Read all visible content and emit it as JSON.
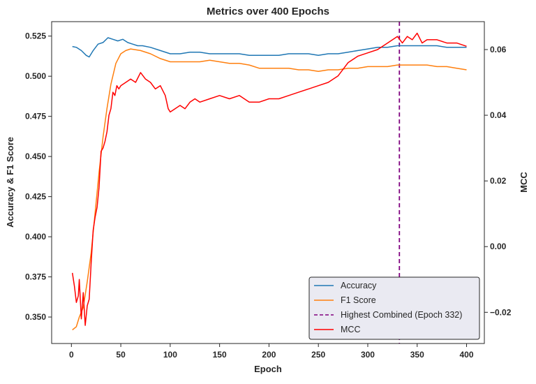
{
  "chart_data": {
    "type": "line",
    "title": "Metrics over 400 Epochs",
    "xlabel": "Epoch",
    "ylabel_left": "Accuracy & F1 Score",
    "ylabel_right": "MCC",
    "xlim": [
      -20,
      418
    ],
    "ylim_left": [
      0.3335,
      0.534
    ],
    "ylim_right": [
      -0.0295,
      0.0685
    ],
    "x_ticks": [
      0,
      50,
      100,
      150,
      200,
      250,
      300,
      350,
      400
    ],
    "y_left_ticks": [
      0.35,
      0.375,
      0.4,
      0.425,
      0.45,
      0.475,
      0.5,
      0.525
    ],
    "y_left_tick_labels": [
      "0.350",
      "0.375",
      "0.400",
      "0.425",
      "0.450",
      "0.475",
      "0.500",
      "0.525"
    ],
    "y_right_ticks": [
      -0.02,
      0.0,
      0.02,
      0.04,
      0.06
    ],
    "y_right_tick_labels": [
      "−0.02",
      "0.00",
      "0.02",
      "0.04",
      "0.06"
    ],
    "grid": false,
    "legend_placement": "lower-right",
    "vline": {
      "x": 332,
      "label": "Highest Combined (Epoch 332)",
      "color": "#800080"
    },
    "series": [
      {
        "name": "Accuracy",
        "axis": "left",
        "color": "#1f77b4",
        "x": [
          1,
          5,
          10,
          15,
          18,
          22,
          27,
          32,
          37,
          42,
          47,
          52,
          57,
          62,
          67,
          72,
          80,
          90,
          100,
          110,
          120,
          130,
          140,
          150,
          160,
          170,
          180,
          190,
          200,
          210,
          220,
          230,
          240,
          250,
          260,
          270,
          280,
          290,
          300,
          310,
          320,
          330,
          340,
          350,
          360,
          370,
          380,
          390,
          400
        ],
        "y": [
          0.5185,
          0.518,
          0.516,
          0.513,
          0.512,
          0.516,
          0.52,
          0.521,
          0.524,
          0.523,
          0.522,
          0.523,
          0.521,
          0.52,
          0.519,
          0.519,
          0.518,
          0.516,
          0.514,
          0.514,
          0.515,
          0.515,
          0.514,
          0.514,
          0.514,
          0.514,
          0.513,
          0.513,
          0.513,
          0.513,
          0.514,
          0.514,
          0.514,
          0.513,
          0.514,
          0.514,
          0.515,
          0.516,
          0.517,
          0.518,
          0.518,
          0.519,
          0.519,
          0.519,
          0.519,
          0.519,
          0.518,
          0.518,
          0.518
        ]
      },
      {
        "name": "F1 Score",
        "axis": "left",
        "color": "#ff7f0e",
        "x": [
          1,
          5,
          8,
          12,
          16,
          20,
          24,
          28,
          32,
          36,
          40,
          45,
          50,
          55,
          60,
          70,
          80,
          90,
          100,
          110,
          120,
          130,
          140,
          150,
          160,
          170,
          180,
          190,
          200,
          210,
          220,
          230,
          240,
          250,
          260,
          270,
          280,
          290,
          300,
          310,
          320,
          330,
          340,
          350,
          360,
          370,
          380,
          390,
          400
        ],
        "y": [
          0.342,
          0.344,
          0.35,
          0.356,
          0.372,
          0.39,
          0.415,
          0.44,
          0.462,
          0.48,
          0.495,
          0.508,
          0.514,
          0.516,
          0.517,
          0.516,
          0.514,
          0.511,
          0.509,
          0.509,
          0.509,
          0.509,
          0.51,
          0.509,
          0.508,
          0.508,
          0.507,
          0.505,
          0.505,
          0.505,
          0.505,
          0.504,
          0.504,
          0.503,
          0.504,
          0.504,
          0.505,
          0.505,
          0.506,
          0.506,
          0.506,
          0.507,
          0.507,
          0.507,
          0.507,
          0.506,
          0.506,
          0.505,
          0.504
        ]
      },
      {
        "name": "MCC",
        "axis": "right",
        "color": "#ff0000",
        "x": [
          1,
          3,
          5,
          7,
          8,
          10,
          12,
          14,
          16,
          18,
          20,
          22,
          24,
          26,
          28,
          30,
          32,
          34,
          36,
          38,
          40,
          42,
          44,
          46,
          48,
          50,
          55,
          60,
          65,
          70,
          75,
          80,
          85,
          90,
          95,
          98,
          100,
          105,
          110,
          115,
          120,
          125,
          130,
          140,
          150,
          160,
          170,
          180,
          190,
          200,
          210,
          220,
          230,
          240,
          250,
          260,
          270,
          280,
          290,
          300,
          310,
          320,
          330,
          335,
          340,
          345,
          350,
          355,
          360,
          370,
          380,
          390,
          400
        ],
        "y": [
          -0.008,
          -0.012,
          -0.017,
          -0.015,
          -0.01,
          -0.022,
          -0.014,
          -0.024,
          -0.018,
          -0.016,
          -0.005,
          0.005,
          0.009,
          0.012,
          0.018,
          0.029,
          0.03,
          0.032,
          0.035,
          0.04,
          0.042,
          0.047,
          0.046,
          0.049,
          0.048,
          0.049,
          0.05,
          0.051,
          0.05,
          0.053,
          0.051,
          0.05,
          0.048,
          0.049,
          0.046,
          0.042,
          0.041,
          0.042,
          0.043,
          0.042,
          0.044,
          0.045,
          0.044,
          0.045,
          0.046,
          0.045,
          0.046,
          0.044,
          0.044,
          0.045,
          0.045,
          0.046,
          0.047,
          0.048,
          0.049,
          0.05,
          0.052,
          0.056,
          0.058,
          0.059,
          0.06,
          0.062,
          0.064,
          0.062,
          0.064,
          0.063,
          0.065,
          0.062,
          0.063,
          0.063,
          0.062,
          0.062,
          0.061
        ]
      }
    ]
  }
}
